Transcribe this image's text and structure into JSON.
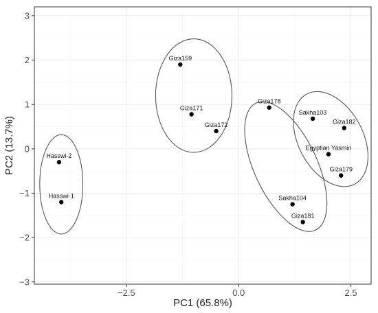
{
  "chart_data": {
    "type": "scatter",
    "title": "",
    "xlabel": "PC1 (65.8%)",
    "ylabel": "PC2 (13.7%)",
    "xlim": [
      -4.55,
      2.95
    ],
    "ylim": [
      -3.05,
      3.2
    ],
    "x_ticks": [
      -2.5,
      0.0,
      2.5
    ],
    "x_tick_labels": [
      "−2.5",
      "0.0",
      "2.5"
    ],
    "y_ticks": [
      -3,
      -2,
      -1,
      0,
      1,
      2,
      3
    ],
    "y_tick_labels": [
      "−3",
      "−2",
      "−1",
      "0",
      "1",
      "2",
      "3"
    ],
    "grid": true,
    "legend": "none",
    "colors": {
      "point": "#000000",
      "ellipse": "#555555",
      "grid_major": "#ebebeb",
      "grid_minor": "#f5f5f5",
      "panel_border": "#333333"
    },
    "points": [
      {
        "label": "Hasswi-2",
        "x": -4.0,
        "y": -0.3
      },
      {
        "label": "Hasswi-1",
        "x": -3.95,
        "y": -1.2
      },
      {
        "label": "Giza159",
        "x": -1.3,
        "y": 1.9
      },
      {
        "label": "Giza171",
        "x": -1.05,
        "y": 0.78
      },
      {
        "label": "Giza172",
        "x": -0.5,
        "y": 0.4
      },
      {
        "label": "Giza178",
        "x": 0.68,
        "y": 0.93
      },
      {
        "label": "Sakha103",
        "x": 1.65,
        "y": 0.68
      },
      {
        "label": "Giza182",
        "x": 2.35,
        "y": 0.47
      },
      {
        "label": "Egyptian Yasmin",
        "x": 2.0,
        "y": -0.12
      },
      {
        "label": "Giza179",
        "x": 2.28,
        "y": -0.6
      },
      {
        "label": "Sakha104",
        "x": 1.2,
        "y": -1.25
      },
      {
        "label": "Giza181",
        "x": 1.43,
        "y": -1.65
      }
    ],
    "clusters": [
      {
        "members": [
          "Hasswi-2",
          "Hasswi-1"
        ],
        "cx": -3.95,
        "cy": -0.8,
        "rx": 0.48,
        "ry": 1.12,
        "angle": 0
      },
      {
        "members": [
          "Giza159",
          "Giza171",
          "Giza172"
        ],
        "cx": -1.0,
        "cy": 1.2,
        "rx": 0.85,
        "ry": 1.28,
        "angle": 0
      },
      {
        "members": [
          "Giza178",
          "Sakha104",
          "Giza181"
        ],
        "cx": 1.05,
        "cy": -0.4,
        "rx": 0.7,
        "ry": 1.58,
        "angle": 25
      },
      {
        "members": [
          "Sakha103",
          "Giza182",
          "Egyptian Yasmin",
          "Giza179"
        ],
        "cx": 2.05,
        "cy": 0.22,
        "rx": 0.72,
        "ry": 1.15,
        "angle": 28
      }
    ]
  }
}
